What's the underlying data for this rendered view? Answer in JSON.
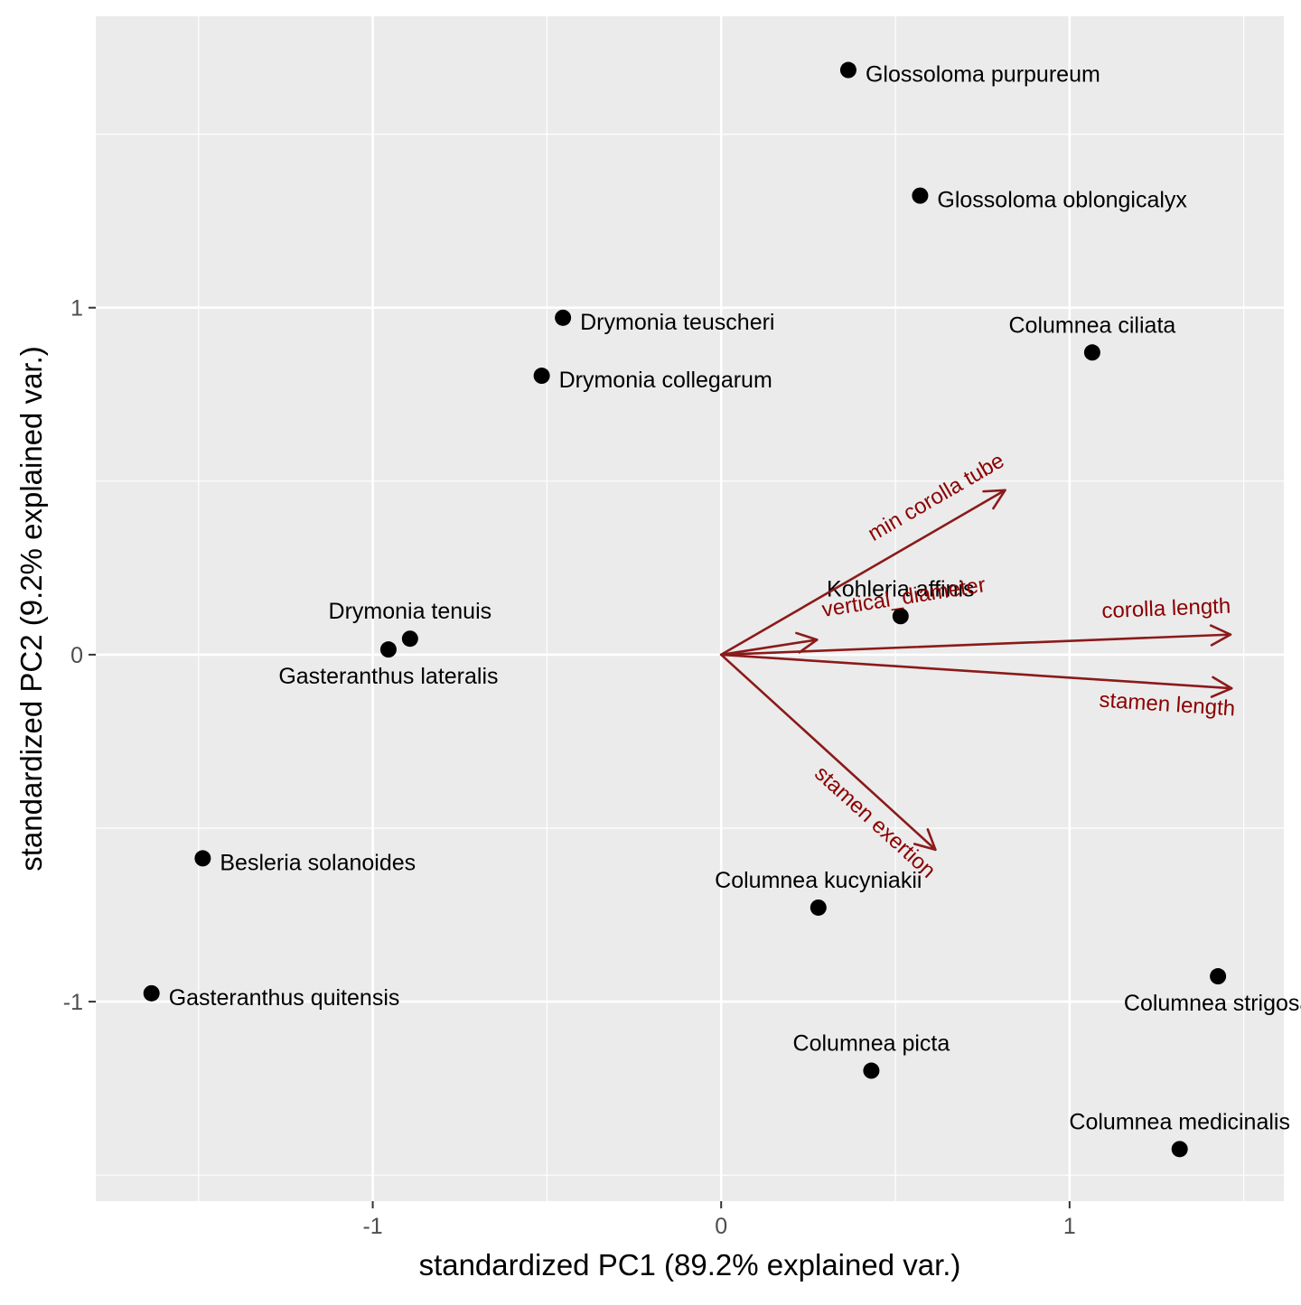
{
  "chart_data": {
    "type": "scatter",
    "xlabel": "standardized PC1 (89.2% explained var.)",
    "ylabel": "standardized PC2 (9.2% explained var.)",
    "xlim": [
      -1.795,
      1.615
    ],
    "ylim": [
      -1.575,
      1.84
    ],
    "x_ticks": [
      {
        "value": -1,
        "label": "-1"
      },
      {
        "value": 0,
        "label": "0"
      },
      {
        "value": 1,
        "label": "1"
      }
    ],
    "y_ticks": [
      {
        "value": 1,
        "label": "1"
      },
      {
        "value": 0,
        "label": "0"
      },
      {
        "value": -1,
        "label": "-1"
      }
    ],
    "grid": true,
    "panel_color": "#ebebeb",
    "grid_color": "#ffffff",
    "point_color": "#000000",
    "arrow_color": "#8b1a1a",
    "arrow_label_color": "#8b0000",
    "points": [
      {
        "label": "Glossoloma purpureum",
        "x": 0.365,
        "y": 1.685,
        "label_pos": "right"
      },
      {
        "label": "Glossoloma oblongicalyx",
        "x": 0.571,
        "y": 1.323,
        "label_pos": "right"
      },
      {
        "label": "Drymonia teuscheri",
        "x": -0.454,
        "y": 0.971,
        "label_pos": "right"
      },
      {
        "label": "Drymonia collegarum",
        "x": -0.515,
        "y": 0.804,
        "label_pos": "right"
      },
      {
        "label": "Columnea ciliata",
        "x": 1.065,
        "y": 0.871,
        "label_pos": "above"
      },
      {
        "label": "Kohleria affinis",
        "x": 0.515,
        "y": 0.111,
        "label_pos": "above"
      },
      {
        "label": "Drymonia tenuis",
        "x": -0.893,
        "y": 0.046,
        "label_pos": "above"
      },
      {
        "label": "Gasteranthus lateralis",
        "x": -0.955,
        "y": 0.015,
        "label_pos": "below"
      },
      {
        "label": "Besleria solanoides",
        "x": -1.488,
        "y": -0.587,
        "label_pos": "right"
      },
      {
        "label": "Gasteranthus quitensis",
        "x": -1.635,
        "y": -0.976,
        "label_pos": "right"
      },
      {
        "label": "Columnea kucyniakii",
        "x": 0.279,
        "y": -0.729,
        "label_pos": "above"
      },
      {
        "label": "Columnea strigosa",
        "x": 1.426,
        "y": -0.927,
        "label_pos": "below"
      },
      {
        "label": "Columnea picta",
        "x": 0.431,
        "y": -1.199,
        "label_pos": "above"
      },
      {
        "label": "Columnea medicinalis",
        "x": 1.316,
        "y": -1.425,
        "label_pos": "above"
      }
    ],
    "arrows": [
      {
        "label": "min corolla tube",
        "x": 0.815,
        "y": 0.474
      },
      {
        "label": "vertical_diameter",
        "x": 0.275,
        "y": 0.043
      },
      {
        "label": "corolla length",
        "x": 1.462,
        "y": 0.058
      },
      {
        "label": "stamen length",
        "x": 1.465,
        "y": -0.097
      },
      {
        "label": "stamen exertion",
        "x": 0.615,
        "y": -0.562
      }
    ]
  }
}
